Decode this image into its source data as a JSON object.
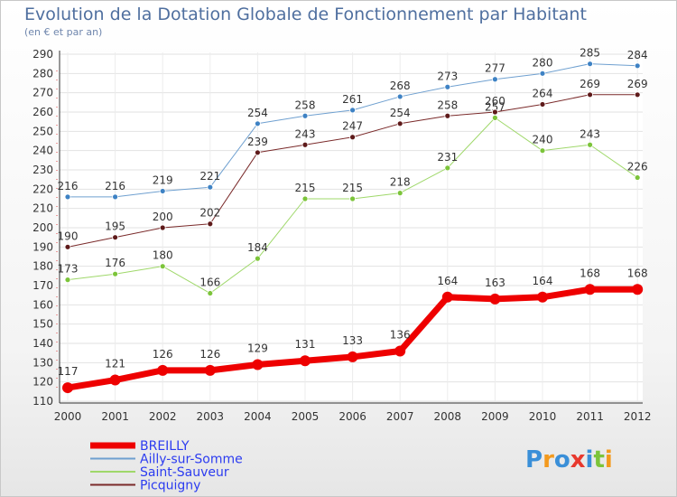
{
  "chart_data": {
    "type": "line",
    "title": "Evolution de la Dotation Globale de Fonctionnement par Habitant",
    "subtitle": "(en € et par an)",
    "xlabel": "",
    "ylabel": "",
    "ylim": [
      110,
      290
    ],
    "ytick_step": 10,
    "categories": [
      "2000",
      "2001",
      "2002",
      "2003",
      "2004",
      "2005",
      "2006",
      "2007",
      "2008",
      "2009",
      "2010",
      "2011",
      "2012"
    ],
    "series": [
      {
        "name": "Ailly-sur-Somme",
        "color": "#6fa0d0",
        "marker": "#3e82c4",
        "width": 1,
        "values": [
          216,
          216,
          219,
          221,
          254,
          258,
          261,
          268,
          273,
          277,
          280,
          285,
          284
        ]
      },
      {
        "name": "Saint-Sauveur",
        "color": "#9fd86a",
        "marker": "#7cc43a",
        "width": 1,
        "values": [
          173,
          176,
          180,
          166,
          184,
          215,
          215,
          218,
          231,
          257,
          240,
          243,
          226
        ]
      },
      {
        "name": "Picquigny",
        "color": "#7a2a2a",
        "marker": "#5e1a1a",
        "width": 1,
        "values": [
          190,
          195,
          200,
          202,
          239,
          243,
          247,
          254,
          258,
          260,
          264,
          269,
          269
        ]
      },
      {
        "name": "BREILLY",
        "color": "#ee0000",
        "marker": "#ee0000",
        "width": 7,
        "values": [
          117,
          121,
          126,
          126,
          129,
          131,
          133,
          136,
          164,
          163,
          164,
          168,
          168
        ]
      }
    ],
    "legend": [
      "BREILLY",
      "Ailly-sur-Somme",
      "Saint-Sauveur",
      "Picquigny"
    ],
    "legend_position": "bottom-left"
  },
  "logo": {
    "text": "Proxiti",
    "letters": [
      "P",
      "r",
      "o",
      "x",
      "i",
      "t",
      "i"
    ],
    "colors": [
      "#3a8fd8",
      "#f39a1e",
      "#3a8fd8",
      "#e8392e",
      "#3a8fd8",
      "#7cc43a",
      "#f39a1e"
    ]
  }
}
